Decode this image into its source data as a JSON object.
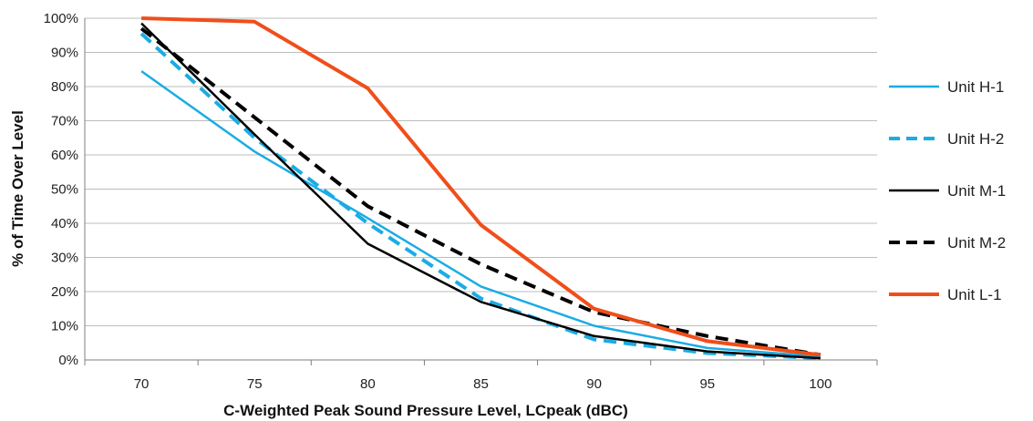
{
  "chart_data": {
    "type": "line",
    "title": "",
    "xlabel": "C-Weighted Peak Sound Pressure Level, LCpeak (dBC)",
    "ylabel": "% of Time Over Level",
    "categories": [
      "70",
      "75",
      "80",
      "85",
      "90",
      "95",
      "100"
    ],
    "x": [
      70,
      75,
      80,
      85,
      90,
      95,
      100
    ],
    "ylim": [
      0,
      100
    ],
    "y_ticks": [
      "0%",
      "10%",
      "20%",
      "30%",
      "40%",
      "50%",
      "60%",
      "70%",
      "80%",
      "90%",
      "100%"
    ],
    "grid": "horizontal",
    "legend_position": "right",
    "series": [
      {
        "name": "Unit H-1",
        "values": [
          84.5,
          61,
          41.5,
          21.5,
          10,
          3.5,
          1
        ],
        "color": "#1aace3",
        "dash": "solid",
        "width": "thin"
      },
      {
        "name": "Unit H-2",
        "values": [
          95.5,
          65,
          40,
          18,
          6,
          2,
          0.5
        ],
        "color": "#1aace3",
        "dash": "dashed",
        "width": "thick"
      },
      {
        "name": "Unit M-1",
        "values": [
          98.5,
          66,
          34,
          17,
          7,
          2.5,
          0.5
        ],
        "color": "#000000",
        "dash": "solid",
        "width": "thin"
      },
      {
        "name": "Unit M-2",
        "values": [
          97,
          71,
          45,
          28,
          14,
          7,
          1.5
        ],
        "color": "#000000",
        "dash": "dashed",
        "width": "thick"
      },
      {
        "name": "Unit L-1",
        "values": [
          100,
          99,
          79.5,
          39.5,
          15,
          5.5,
          1.5
        ],
        "color": "#f04e1a",
        "dash": "solid",
        "width": "thick"
      }
    ]
  }
}
